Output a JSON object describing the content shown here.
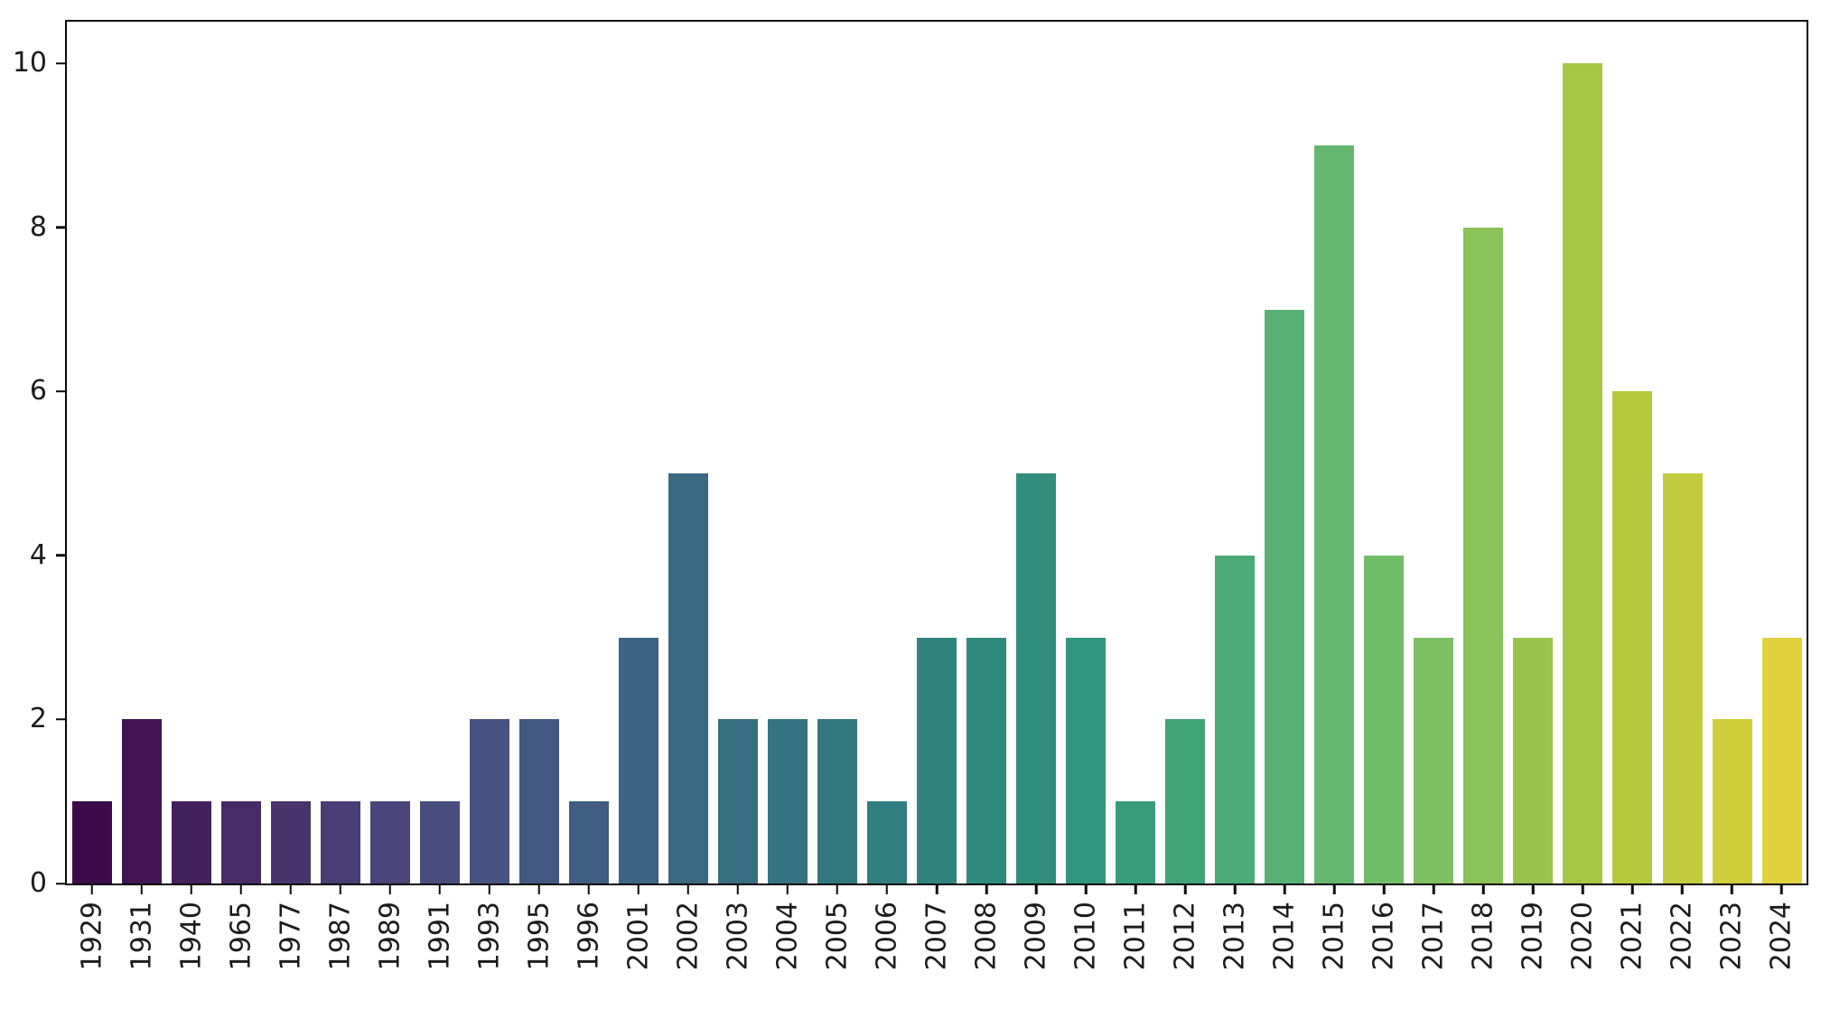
{
  "figure": {
    "background": "#ffffff",
    "frame_color": "#0a0a0a",
    "text_color": "#1c1c1c"
  },
  "chart_data": {
    "type": "bar",
    "title": "",
    "xlabel": "",
    "ylabel": "",
    "categories": [
      "1929",
      "1931",
      "1940",
      "1965",
      "1977",
      "1987",
      "1989",
      "1991",
      "1993",
      "1995",
      "1996",
      "2001",
      "2002",
      "2003",
      "2004",
      "2005",
      "2006",
      "2007",
      "2008",
      "2009",
      "2010",
      "2011",
      "2012",
      "2013",
      "2014",
      "2015",
      "2016",
      "2017",
      "2018",
      "2019",
      "2020",
      "2021",
      "2022",
      "2023",
      "2024"
    ],
    "values": [
      1,
      2,
      1,
      1,
      1,
      1,
      1,
      1,
      2,
      2,
      1,
      3,
      5,
      2,
      2,
      2,
      1,
      3,
      3,
      5,
      3,
      1,
      2,
      4,
      7,
      9,
      4,
      3,
      8,
      3,
      10,
      6,
      5,
      2,
      3
    ],
    "bar_colors": [
      "#3e0b4a",
      "#411554",
      "#44205d",
      "#482a67",
      "#49346e",
      "#4a3c74",
      "#4a457a",
      "#494d7e",
      "#475380",
      "#435881",
      "#415e82",
      "#3d6482",
      "#3b6982",
      "#386e82",
      "#367381",
      "#337880",
      "#317e80",
      "#2f837f",
      "#30897f",
      "#328f7d",
      "#32957d",
      "#399c7b",
      "#42a379",
      "#4caa77",
      "#56b173",
      "#65b76f",
      "#72bd6a",
      "#7ec063",
      "#8bc259",
      "#98c44e",
      "#a6c744",
      "#b5c93d",
      "#c2cb3e",
      "#d1ce3e",
      "#e2d240"
    ],
    "palette": "viridis gradient, dark purple to yellow, left to right",
    "y_ticks": [
      0,
      2,
      4,
      6,
      8,
      10
    ],
    "ylim": [
      0,
      10.51
    ],
    "bar_width_fraction": 0.8,
    "x_tick_rotation_degrees": 90,
    "grid": "off",
    "legend": "none"
  }
}
